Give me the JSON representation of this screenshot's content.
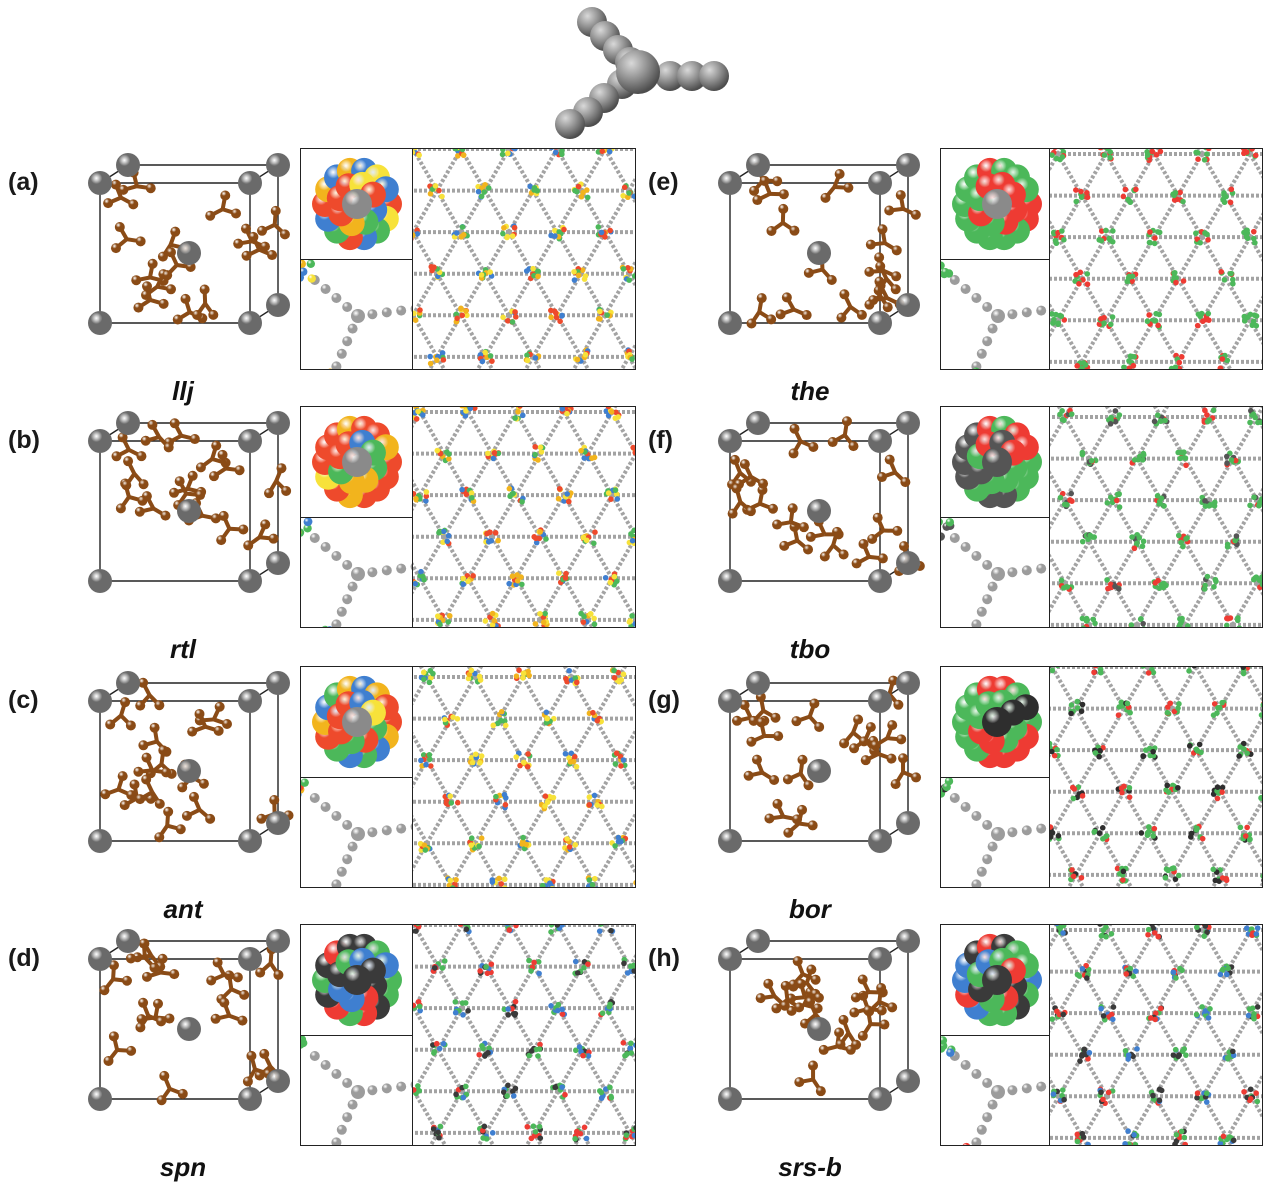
{
  "panels": [
    {
      "label": "(a)",
      "name": "llj",
      "colors": [
        "#f2b41d",
        "#ee4a2c",
        "#f7e23a",
        "#3f7fd0",
        "#4cb85a"
      ],
      "dark": "#8a8a8a"
    },
    {
      "label": "(b)",
      "name": "rtl",
      "colors": [
        "#f2b41d",
        "#ee4a2c",
        "#f7e23a",
        "#3f7fd0",
        "#4cb85a"
      ],
      "dark": "#8a8a8a"
    },
    {
      "label": "(c)",
      "name": "ant",
      "colors": [
        "#f2b41d",
        "#ee4a2c",
        "#f7e23a",
        "#3f7fd0",
        "#4cb85a"
      ],
      "dark": "#8a8a8a"
    },
    {
      "label": "(d)",
      "name": "spn",
      "colors": [
        "#3a3a3a",
        "#4cb85a",
        "#ee3b33",
        "#3f7fd0",
        "#4cb85a"
      ],
      "dark": "#3a3a3a"
    },
    {
      "label": "(e)",
      "name": "the",
      "colors": [
        "#4cb85a",
        "#ee3b33",
        "#4cb85a",
        "#ee3b33",
        "#4cb85a"
      ],
      "dark": "#8a8a8a"
    },
    {
      "label": "(f)",
      "name": "tbo",
      "colors": [
        "#4cb85a",
        "#ee3b33",
        "#4cb85a",
        "#555555",
        "#4cb85a"
      ],
      "dark": "#555555"
    },
    {
      "label": "(g)",
      "name": "bor",
      "colors": [
        "#4cb85a",
        "#ee3b33",
        "#4cb85a",
        "#2e2e2e",
        "#4cb85a"
      ],
      "dark": "#2e2e2e"
    },
    {
      "label": "(h)",
      "name": "srs-b",
      "colors": [
        "#4cb85a",
        "#ee3b33",
        "#3f7fd0",
        "#3a3a3a",
        "#4cb85a"
      ],
      "dark": "#3a3a3a"
    }
  ],
  "palette": {
    "node": "#6e6e6e",
    "linker": "#8a4b16",
    "linker_bead": "#9a9a9a",
    "frame": "#222222"
  }
}
